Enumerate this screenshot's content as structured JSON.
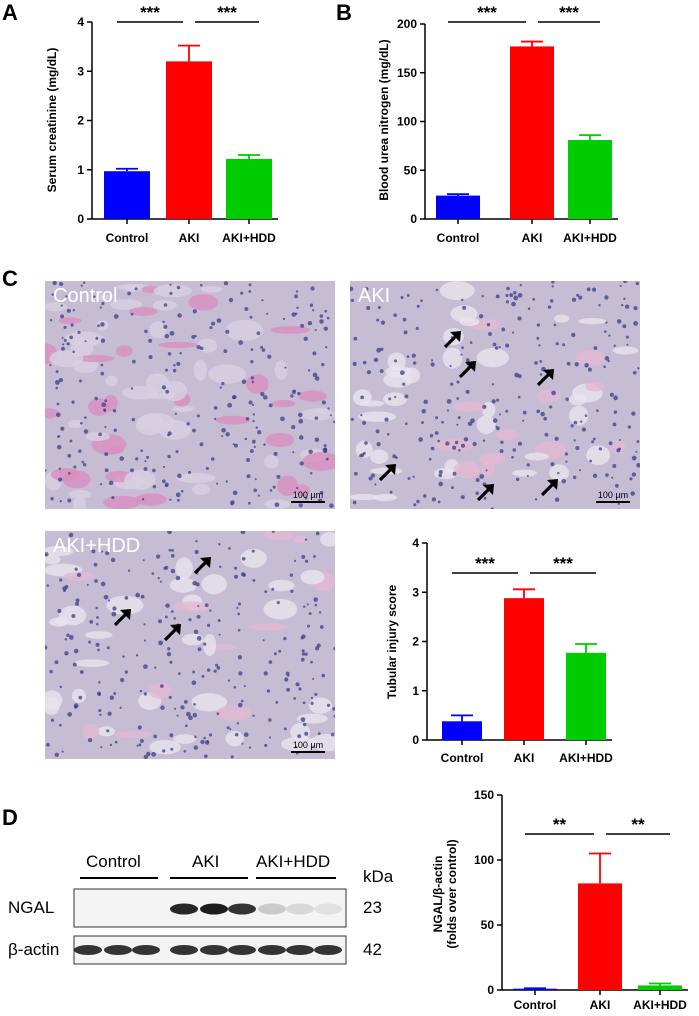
{
  "panels": {
    "a": "A",
    "b": "B",
    "c": "C",
    "d": "D"
  },
  "micrographs": {
    "control_label": "Control",
    "aki_label": "AKI",
    "akihdd_label": "AKI+HDD",
    "scale_bar": "100 µm",
    "arrow_counts": [
      0,
      6,
      3
    ],
    "colors": {
      "tissue": "#c6bcd4",
      "pink": "#d88fbf",
      "nuclei": "#3b3f87"
    }
  },
  "western_blot": {
    "group_labels": [
      "Control",
      "AKI",
      "AKI+HDD"
    ],
    "kda_label": "kDa",
    "rows": [
      {
        "name": "NGAL",
        "kda": "23"
      },
      {
        "name": "β-actin",
        "kda": "42"
      }
    ]
  },
  "chart_data": [
    {
      "type": "bar",
      "panel": "A",
      "categories": [
        "Control",
        "AKI",
        "AKI+HDD"
      ],
      "values": [
        0.97,
        3.2,
        1.22
      ],
      "errors": [
        0.05,
        0.32,
        0.08
      ],
      "colors": [
        "#0000ff",
        "#ff0000",
        "#00cc00"
      ],
      "ylabel": "Serum creatinine (mg/dL)",
      "ylim": [
        0,
        4
      ],
      "yticks": [
        0,
        1,
        2,
        3,
        4
      ],
      "significance": [
        {
          "from": 0,
          "to": 1,
          "label": "***"
        },
        {
          "from": 1,
          "to": 2,
          "label": "***"
        }
      ]
    },
    {
      "type": "bar",
      "panel": "B",
      "categories": [
        "Control",
        "AKI",
        "AKI+HDD"
      ],
      "values": [
        24,
        177,
        81
      ],
      "errors": [
        1.5,
        5,
        5
      ],
      "colors": [
        "#0000ff",
        "#ff0000",
        "#00cc00"
      ],
      "ylabel": "Blood urea nitrogen (mg/dL)",
      "ylim": [
        0,
        200
      ],
      "yticks": [
        0,
        50,
        100,
        150,
        200
      ],
      "significance": [
        {
          "from": 0,
          "to": 1,
          "label": "***"
        },
        {
          "from": 1,
          "to": 2,
          "label": "***"
        }
      ]
    },
    {
      "type": "bar",
      "panel": "C",
      "categories": [
        "Control",
        "AKI",
        "AKI+HDD"
      ],
      "values": [
        0.38,
        2.88,
        1.77
      ],
      "errors": [
        0.12,
        0.18,
        0.18
      ],
      "colors": [
        "#0000ff",
        "#ff0000",
        "#00cc00"
      ],
      "ylabel": "Tubular injury score",
      "ylim": [
        0,
        4
      ],
      "yticks": [
        0,
        1,
        2,
        3,
        4
      ],
      "significance": [
        {
          "from": 0,
          "to": 1,
          "label": "***"
        },
        {
          "from": 1,
          "to": 2,
          "label": "***"
        }
      ]
    },
    {
      "type": "bar",
      "panel": "D",
      "categories": [
        "Control",
        "AKI",
        "AKI+HDD"
      ],
      "values": [
        1,
        82,
        3.5
      ],
      "errors": [
        0.3,
        23,
        1.5
      ],
      "colors": [
        "#0000ff",
        "#ff0000",
        "#00cc00"
      ],
      "ylabel": "NGAL/β-actin",
      "ylabel2": "(folds over control)",
      "ylim": [
        0,
        150
      ],
      "yticks": [
        0,
        50,
        100,
        150
      ],
      "significance": [
        {
          "from": 0,
          "to": 1,
          "label": "**"
        },
        {
          "from": 1,
          "to": 2,
          "label": "**"
        }
      ]
    }
  ]
}
